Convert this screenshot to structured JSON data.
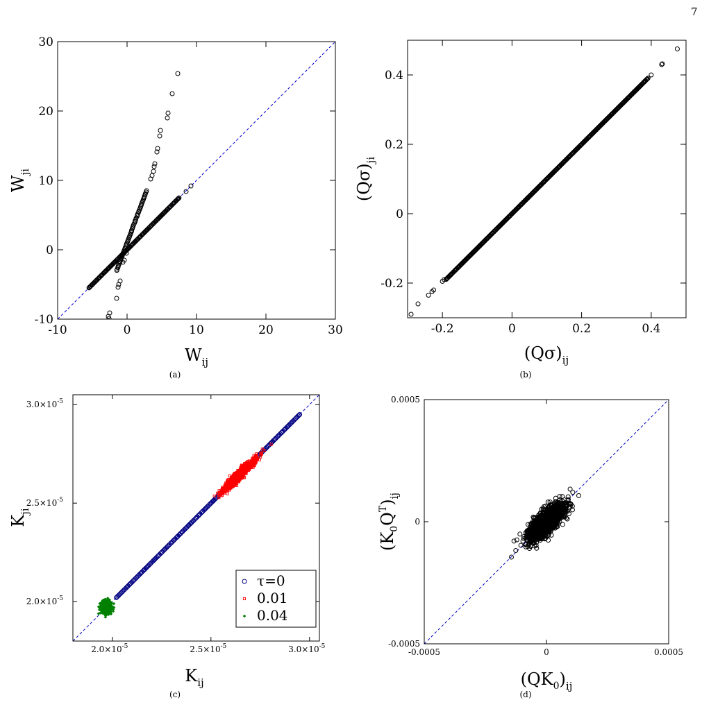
{
  "page_number": "7",
  "chart_data": [
    {
      "id": "a",
      "type": "scatter",
      "caption": "(a)",
      "xlabel": "W",
      "xlabel_sub": "ij",
      "ylabel": "W",
      "ylabel_sub": "ji",
      "xlim": [
        -10,
        30
      ],
      "ylim": [
        -10,
        30
      ],
      "xticks": [
        -10,
        0,
        10,
        20,
        30
      ],
      "yticks": [
        -10,
        0,
        10,
        20,
        30
      ],
      "diagonal": true,
      "grid": false,
      "marker_color": "#000000",
      "diagonal_color": "#0000cc",
      "series": [
        {
          "name": "",
          "marker": "open-circle",
          "segments": [
            {
              "x0": -5.5,
              "y0": -5.5,
              "x1": 7.5,
              "y1": 7.5,
              "n": 140
            },
            {
              "x0": -1.5,
              "y0": -3.0,
              "x1": 2.8,
              "y1": 8.5,
              "n": 60
            }
          ],
          "points": [
            {
              "x": 8.5,
              "y": 8.4
            },
            {
              "x": 9.2,
              "y": 9.2
            },
            {
              "x": 3.4,
              "y": 10.2
            },
            {
              "x": 3.6,
              "y": 10.7
            },
            {
              "x": 3.8,
              "y": 11.3
            },
            {
              "x": 3.9,
              "y": 12.0
            },
            {
              "x": 4.0,
              "y": 12.4
            },
            {
              "x": 4.3,
              "y": 14.1
            },
            {
              "x": 4.4,
              "y": 14.6
            },
            {
              "x": 4.7,
              "y": 16.4
            },
            {
              "x": 4.8,
              "y": 17.2
            },
            {
              "x": 5.8,
              "y": 19.0
            },
            {
              "x": 5.9,
              "y": 19.7
            },
            {
              "x": 6.5,
              "y": 22.5
            },
            {
              "x": 7.3,
              "y": 25.4
            },
            {
              "x": -0.1,
              "y": -0.5
            },
            {
              "x": -0.4,
              "y": -1.5
            },
            {
              "x": -0.6,
              "y": -1.8
            },
            {
              "x": -1.0,
              "y": -4.5
            },
            {
              "x": -1.2,
              "y": -5.0
            },
            {
              "x": -1.3,
              "y": -5.4
            },
            {
              "x": -1.5,
              "y": -7.0
            },
            {
              "x": -2.5,
              "y": -9.1
            },
            {
              "x": -2.7,
              "y": -9.6
            },
            {
              "x": -2.6,
              "y": -9.9
            },
            {
              "x": -5.4,
              "y": -5.4
            }
          ]
        }
      ]
    },
    {
      "id": "b",
      "type": "scatter",
      "caption": "(b)",
      "xlabel": "(Qσ)",
      "xlabel_sub": "ij",
      "ylabel": "(Qσ)",
      "ylabel_sub": "ji",
      "xlim": [
        -0.3,
        0.5
      ],
      "ylim": [
        -0.3,
        0.5
      ],
      "xticks": [
        -0.2,
        0,
        0.2,
        0.4
      ],
      "yticks": [
        -0.2,
        0,
        0.2,
        0.4
      ],
      "xtick_labels": [
        "-0.2",
        "0",
        "0.2",
        "0.4"
      ],
      "ytick_labels": [
        "-0.2",
        "0",
        "0.2",
        "0.4"
      ],
      "diagonal": false,
      "grid": false,
      "marker_color": "#000000",
      "series": [
        {
          "name": "",
          "marker": "open-circle",
          "segments": [
            {
              "x0": -0.19,
              "y0": -0.19,
              "x1": 0.39,
              "y1": 0.39,
              "n": 420
            }
          ],
          "points": [
            {
              "x": -0.29,
              "y": -0.29
            },
            {
              "x": -0.27,
              "y": -0.26
            },
            {
              "x": -0.24,
              "y": -0.235
            },
            {
              "x": -0.23,
              "y": -0.225
            },
            {
              "x": -0.225,
              "y": -0.22
            },
            {
              "x": -0.2,
              "y": -0.195
            },
            {
              "x": -0.195,
              "y": -0.19
            },
            {
              "x": 0.4,
              "y": 0.4
            },
            {
              "x": 0.43,
              "y": 0.43
            },
            {
              "x": 0.432,
              "y": 0.432
            },
            {
              "x": 0.475,
              "y": 0.475
            }
          ]
        }
      ]
    },
    {
      "id": "c",
      "type": "scatter",
      "caption": "(c)",
      "xlabel": "K",
      "xlabel_sub": "ij",
      "ylabel": "K",
      "ylabel_sub": "ji",
      "xlim": [
        1.8e-05,
        3.05e-05
      ],
      "ylim": [
        1.8e-05,
        3.05e-05
      ],
      "xticks": [
        2e-05,
        2.5e-05,
        3e-05
      ],
      "yticks": [
        2e-05,
        2.5e-05,
        3e-05
      ],
      "tick_mantissas": [
        "2.0×10",
        "2.5×10",
        "3.0×10"
      ],
      "tick_exponent": "-5",
      "diagonal": true,
      "grid": false,
      "diagonal_color": "#0000cc",
      "legend": {
        "position": "bottom-right"
      },
      "series": [
        {
          "name": "τ=0",
          "marker": "open-circle",
          "color": "#00007f",
          "segments": [
            {
              "x0": 2.02e-05,
              "y0": 2.02e-05,
              "x1": 2.95e-05,
              "y1": 2.95e-05,
              "n": 200
            }
          ]
        },
        {
          "name": "0.01",
          "marker": "open-square",
          "color": "#ff0000",
          "cluster": {
            "cx": 2.64e-05,
            "cy": 2.64e-05,
            "major": 1.3e-06,
            "minor": 2.2e-07,
            "n": 900
          }
        },
        {
          "name": "0.04",
          "marker": "filled-diamond",
          "color": "#008000",
          "cluster": {
            "cx": 1.97e-05,
            "cy": 1.97e-05,
            "rx": 2.8e-07,
            "ry": 3.5e-07,
            "n": 600
          }
        }
      ]
    },
    {
      "id": "d",
      "type": "scatter",
      "caption": "(d)",
      "xlabel": "(QK",
      "xlabel_sub_inner": "0",
      "xlabel_close": ")",
      "xlabel_sub": "ij",
      "ylabel": "(K",
      "ylabel_sub_inner": "0",
      "ylabel_mid": "Q",
      "ylabel_sup": "T",
      "ylabel_close": ")",
      "ylabel_sub": "ij",
      "xlim": [
        -0.0005,
        0.0005
      ],
      "ylim": [
        -0.0005,
        0.0005
      ],
      "xticks": [
        -0.0005,
        0,
        0.0005
      ],
      "yticks": [
        -0.0005,
        0,
        0.0005
      ],
      "xtick_labels": [
        "-0.0005",
        "0",
        "0.0005"
      ],
      "ytick_labels": [
        "-0.0005",
        "0",
        "0.0005"
      ],
      "diagonal": true,
      "grid": false,
      "diagonal_color": "#0000cc",
      "series": [
        {
          "name": "",
          "marker": "open-circle",
          "color": "#000000",
          "cluster": {
            "cx": 0.0,
            "cy": 0.0,
            "major": 0.000105,
            "minor": 4e-05,
            "n": 1500
          }
        }
      ]
    }
  ]
}
